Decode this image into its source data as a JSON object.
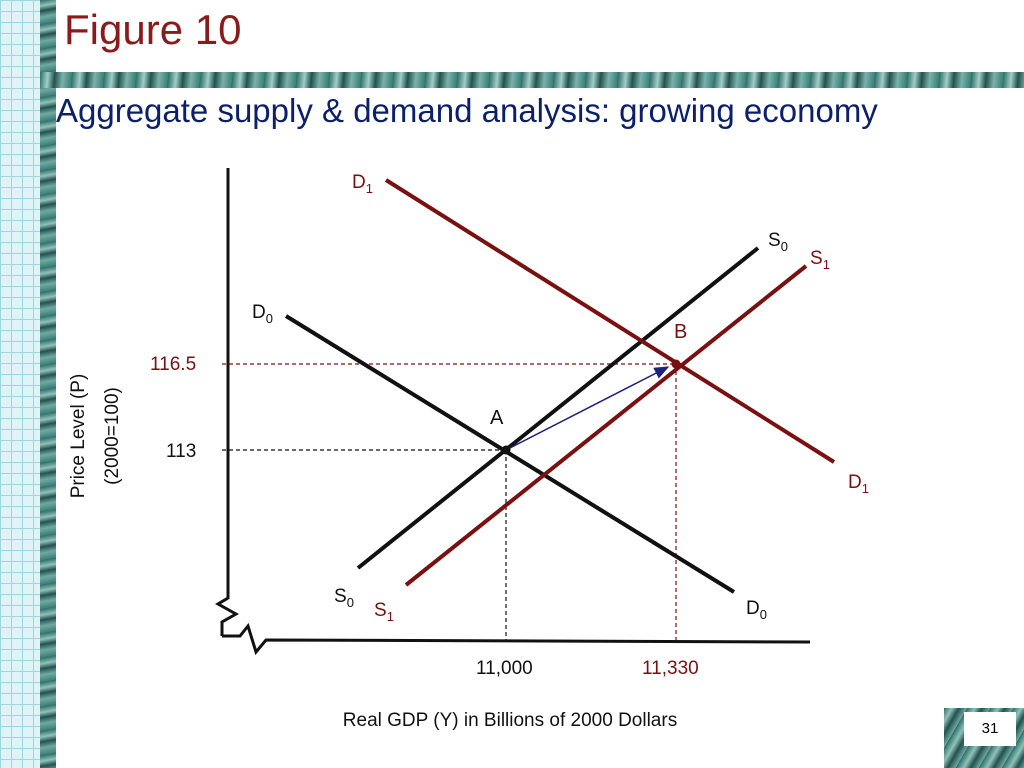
{
  "slide": {
    "title": "Figure 10",
    "subtitle": "Aggregate supply & demand analysis: growing economy",
    "page_number": "31"
  },
  "diagram": {
    "y_axis_label_line1": "Price Level (P)",
    "y_axis_label_line2": "(2000=100)",
    "x_axis_label": "Real GDP (Y) in Billions of 2000 Dollars",
    "price_ticks": [
      "116.5",
      "113"
    ],
    "gdp_ticks": [
      "11,000",
      "11,330"
    ],
    "points": [
      "A",
      "B"
    ],
    "curves": {
      "D0": {
        "base": "D",
        "sub": "0"
      },
      "D1": {
        "base": "D",
        "sub": "1"
      },
      "S0": {
        "base": "S",
        "sub": "0"
      },
      "S1": {
        "base": "S",
        "sub": "1"
      }
    },
    "colors": {
      "original_curves": "#111111",
      "shifted_curves": "#7a1010",
      "shift_arrow": "#1a237e",
      "highlight_text": "#8b1a1a"
    }
  }
}
